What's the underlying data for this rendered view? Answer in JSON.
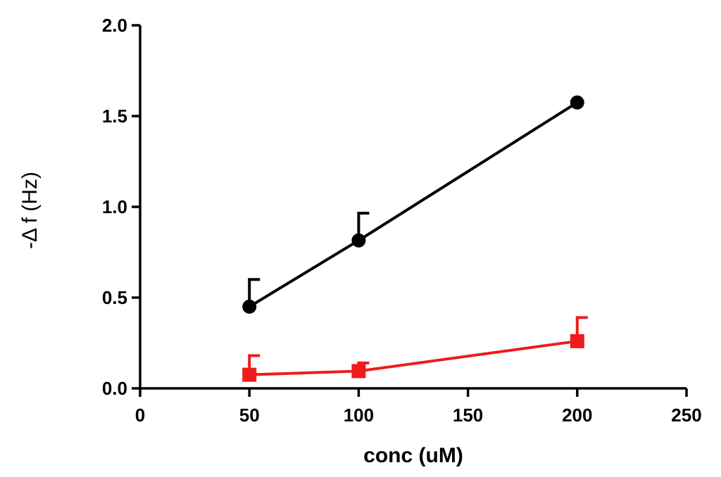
{
  "chart_data": {
    "type": "line",
    "title": "",
    "xlabel": "conc (uM)",
    "ylabel": "-Δ f (Hz)",
    "xlim": [
      0,
      250
    ],
    "ylim": [
      0.0,
      2.0
    ],
    "x_ticks": [
      0,
      50,
      100,
      150,
      200,
      250
    ],
    "x_tick_labels": [
      "0",
      "50",
      "100",
      "150",
      "200",
      "250"
    ],
    "y_ticks": [
      0.0,
      0.5,
      1.0,
      1.5,
      2.0
    ],
    "y_tick_labels": [
      "0.0",
      "0.5",
      "1.0",
      "1.5",
      "2.0"
    ],
    "grid": false,
    "legend": "none",
    "series": [
      {
        "name": "black-series",
        "color": "#000000",
        "marker": "circle",
        "x": [
          50,
          100,
          200
        ],
        "values": [
          0.45,
          0.815,
          1.575
        ],
        "error_upper": [
          0.15,
          0.15,
          null
        ]
      },
      {
        "name": "red-series",
        "color": "#ee1c1c",
        "marker": "square",
        "x": [
          50,
          100,
          200
        ],
        "values": [
          0.075,
          0.095,
          0.26
        ],
        "error_upper": [
          0.105,
          0.045,
          0.13
        ]
      }
    ]
  }
}
